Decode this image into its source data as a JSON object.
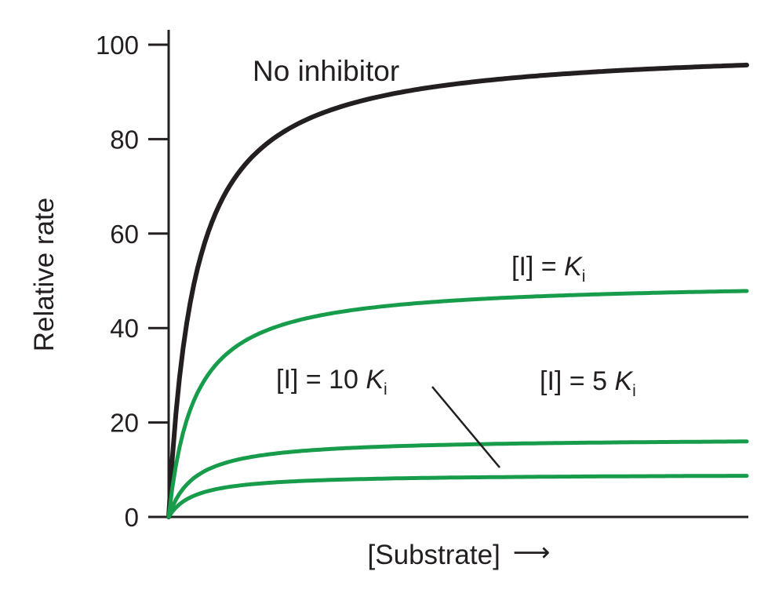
{
  "chart_data": {
    "type": "line",
    "title": "",
    "xlabel": "[Substrate]",
    "xlabel_arrow": "⟶",
    "ylabel": "Relative rate",
    "xlim": [
      0,
      10
    ],
    "ylim": [
      0,
      100
    ],
    "yticks": [
      0,
      20,
      40,
      60,
      80,
      100
    ],
    "xticks": [],
    "grid": false,
    "legend_position": "none (curves labeled inline)",
    "axis_color": "#231f20",
    "text_color": "#231f20",
    "x_samples": [
      0,
      0.25,
      0.5,
      1,
      1.5,
      2,
      3,
      4,
      5,
      6,
      7,
      8,
      9,
      10
    ],
    "series": [
      {
        "id": "no-inhibitor",
        "name": "No inhibitor",
        "color": "#231f20",
        "stroke_width": 6,
        "model": "michaelis-menten",
        "vmax": 100,
        "km": 0.45,
        "values": [
          0,
          35.7,
          52.6,
          69.0,
          76.9,
          81.6,
          87.0,
          89.9,
          91.7,
          93.0,
          94.0,
          94.7,
          95.2,
          95.7
        ]
      },
      {
        "id": "ki",
        "name": "[I] = Ki",
        "color": "#179c4b",
        "stroke_width": 5,
        "model": "michaelis-menten",
        "vmax": 50,
        "km": 0.45,
        "values": [
          0,
          17.9,
          26.3,
          34.5,
          38.5,
          40.8,
          43.5,
          44.9,
          45.9,
          46.5,
          47.0,
          47.3,
          47.6,
          47.8
        ]
      },
      {
        "id": "5ki",
        "name": "[I] = 5 Ki",
        "color": "#179c4b",
        "stroke_width": 5,
        "model": "michaelis-menten",
        "vmax": 16.7,
        "km": 0.45,
        "values": [
          0,
          6.0,
          8.8,
          11.5,
          12.9,
          13.6,
          14.5,
          15.0,
          15.3,
          15.5,
          15.7,
          15.8,
          15.9,
          16.0
        ]
      },
      {
        "id": "10ki",
        "name": "[I] = 10 Ki",
        "color": "#179c4b",
        "stroke_width": 5,
        "model": "michaelis-menten",
        "vmax": 9.1,
        "km": 0.45,
        "values": [
          0,
          3.3,
          4.8,
          6.3,
          7.0,
          7.4,
          7.9,
          8.2,
          8.3,
          8.5,
          8.6,
          8.6,
          8.7,
          8.7
        ]
      }
    ],
    "annotations": {
      "no_inhibitor": {
        "text": "No inhibitor"
      },
      "ki": {
        "prefix": "[I] = ",
        "symbol": "K",
        "subscript": "i"
      },
      "ki10": {
        "prefix": "[I] = 10 ",
        "symbol": "K",
        "subscript": "i"
      },
      "ki5": {
        "prefix": "[I] = 5 ",
        "symbol": "K",
        "subscript": "i"
      }
    }
  }
}
